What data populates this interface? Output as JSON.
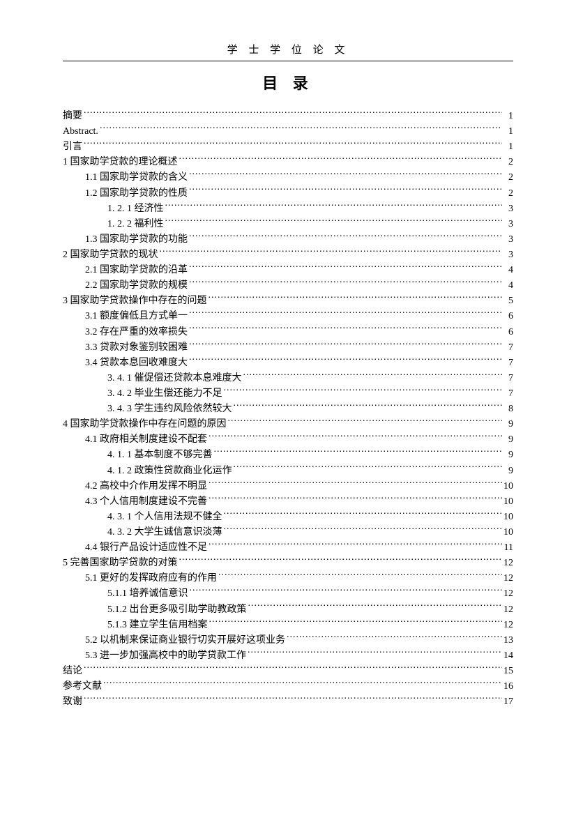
{
  "header": "学 士 学 位 论 文",
  "toc_title": "目 录",
  "entries": [
    {
      "label": "摘要",
      "page": "1",
      "indent": 0
    },
    {
      "label": "Abstract.",
      "page": "1",
      "indent": 0
    },
    {
      "label": "引言",
      "page": "1",
      "indent": 0
    },
    {
      "label": "1  国家助学贷款的理论概述",
      "page": "2",
      "indent": 0
    },
    {
      "label": "1.1 国家助学贷款的含义",
      "page": "2",
      "indent": 1
    },
    {
      "label": "1.2 国家助学贷款的性质",
      "page": "2",
      "indent": 1
    },
    {
      "label": "1. 2. 1  经济性",
      "page": "3",
      "indent": 2
    },
    {
      "label": "1. 2. 2  福利性",
      "page": "3",
      "indent": 2
    },
    {
      "label": "1.3 国家助学贷款的功能",
      "page": "3",
      "indent": 1
    },
    {
      "label": "2 国家助学贷款的现状",
      "page": "3",
      "indent": 0
    },
    {
      "label": "2.1  国家助学贷款的沿革",
      "page": "4",
      "indent": 1
    },
    {
      "label": "2.2  国家助学贷款的规模",
      "page": "4",
      "indent": 1
    },
    {
      "label": "3  国家助学贷款操作中存在的问题",
      "page": "5",
      "indent": 0
    },
    {
      "label": "3.1  额度偏低且方式单一",
      "page": "6",
      "indent": 1
    },
    {
      "label": "3.2  存在严重的效率损失",
      "page": "6",
      "indent": 1
    },
    {
      "label": "3.3  贷款对象鉴别较困难",
      "page": "7",
      "indent": 1
    },
    {
      "label": "3.4  贷款本息回收难度大",
      "page": "7",
      "indent": 1
    },
    {
      "label": "3. 4. 1  催促偿还贷款本息难度大",
      "page": "7",
      "indent": 2
    },
    {
      "label": "3. 4. 2  毕业生偿还能力不足",
      "page": "7",
      "indent": 2
    },
    {
      "label": "3. 4. 3  学生违约风险依然较大",
      "page": "8",
      "indent": 2
    },
    {
      "label": "4  国家助学贷款操作中存在问题的原因",
      "page": "9",
      "indent": 0
    },
    {
      "label": "4.1  政府相关制度建设不配套",
      "page": "9",
      "indent": 1
    },
    {
      "label": "4. 1. 1  基本制度不够完善",
      "page": "9",
      "indent": 2
    },
    {
      "label": "4. 1. 2  政策性贷款商业化运作",
      "page": "9",
      "indent": 2
    },
    {
      "label": "4.2  高校中介作用发挥不明显",
      "page": "10",
      "indent": 1
    },
    {
      "label": "4.3  个人信用制度建设不完善",
      "page": "10",
      "indent": 1
    },
    {
      "label": "4. 3. 1  个人信用法规不健全",
      "page": "10",
      "indent": 2
    },
    {
      "label": "4. 3. 2  大学生诚信意识淡薄",
      "page": "10",
      "indent": 2
    },
    {
      "label": "4.4  银行产品设计适应性不足",
      "page": "11",
      "indent": 1
    },
    {
      "label": "5  完善国家助学贷款的对策",
      "page": "12",
      "indent": 0
    },
    {
      "label": "5.1  更好的发挥政府应有的作用",
      "page": "12",
      "indent": 1
    },
    {
      "label": "5.1.1  培养诚信意识",
      "page": "12",
      "indent": 2
    },
    {
      "label": "5.1.2  出台更多吸引助学助教政策",
      "page": "12",
      "indent": 2
    },
    {
      "label": "5.1.3  建立学生信用档案",
      "page": "12",
      "indent": 2
    },
    {
      "label": "5.2 以机制来保证商业银行切实开展好这项业务",
      "page": "13",
      "indent": 1
    },
    {
      "label": "5.3 进一步加强高校中的助学贷款工作",
      "page": "14",
      "indent": 1
    },
    {
      "label": "结论",
      "page": "15",
      "indent": 0
    },
    {
      "label": "参考文献",
      "page": "16",
      "indent": 0
    },
    {
      "label": "致谢",
      "page": "17",
      "indent": 0
    }
  ],
  "colors": {
    "text": "#000000",
    "background": "#ffffff",
    "rule": "#000000"
  },
  "typography": {
    "body_fontsize_pt": 10.5,
    "header_fontsize_pt": 11,
    "toc_title_fontsize_pt": 16,
    "font_family": "SimSun"
  }
}
